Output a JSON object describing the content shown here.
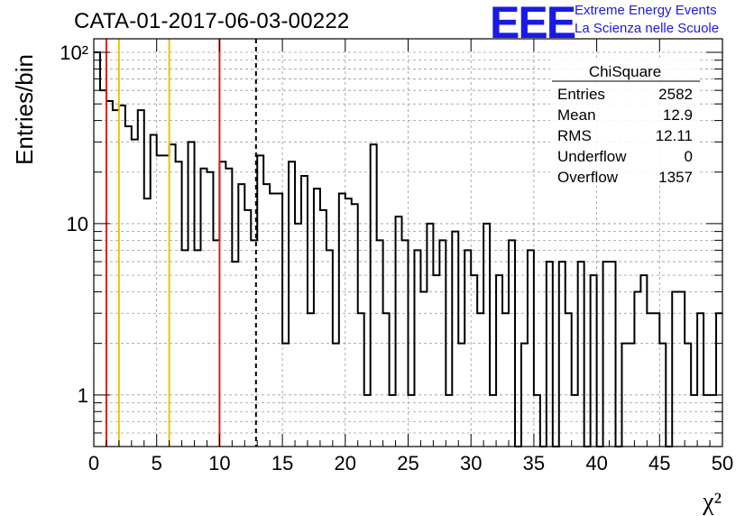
{
  "header": {
    "title": "CATA-01-2017-06-03-00222"
  },
  "logo": {
    "mark": "EEE",
    "line1": "Extreme Energy Events",
    "line2": "La Scienza nelle Scuole",
    "color": "#1a1ae6"
  },
  "stats": {
    "title": "ChiSquare",
    "rows": [
      {
        "label": "Entries",
        "value": "2582"
      },
      {
        "label": "Mean",
        "value": "12.9"
      },
      {
        "label": "RMS",
        "value": "12.11"
      },
      {
        "label": "Underflow",
        "value": "0"
      },
      {
        "label": "Overflow",
        "value": "1357"
      }
    ]
  },
  "chart_data": {
    "type": "histogram",
    "title": "",
    "xlabel": "χ²",
    "ylabel": "Entries/bin",
    "xlim": [
      0,
      50
    ],
    "ylim": [
      0.5,
      120
    ],
    "yscale": "log",
    "grid": true,
    "bin_width": 0.5,
    "x_ticks": [
      0,
      5,
      10,
      15,
      20,
      25,
      30,
      35,
      40,
      45,
      50
    ],
    "y_tick_labels": [
      "1",
      "10",
      "10²"
    ],
    "counts": [
      100,
      60,
      52,
      46,
      49,
      37,
      31,
      46,
      14,
      33,
      25,
      25,
      29,
      23,
      7,
      30,
      7,
      21,
      20,
      8,
      23,
      21,
      6,
      17,
      12,
      8,
      25,
      17,
      15,
      15,
      2,
      23,
      10,
      19,
      3,
      16,
      12,
      7,
      2,
      15,
      14,
      13,
      3,
      1,
      29,
      8,
      3,
      1,
      11,
      8,
      1,
      7,
      4,
      10,
      5,
      8,
      1,
      9,
      2,
      7,
      5,
      3,
      10,
      1,
      5,
      3,
      8,
      0,
      2,
      7,
      1,
      0,
      6,
      0,
      6,
      3,
      1,
      6,
      0,
      5,
      0,
      6,
      6,
      0,
      2,
      2,
      4,
      5,
      3,
      3,
      2,
      0,
      4,
      4,
      2,
      1,
      3,
      1,
      1,
      3
    ],
    "vlines": [
      {
        "x": 1,
        "color": "#e0201a",
        "style": "solid"
      },
      {
        "x": 2,
        "color": "#f2c200",
        "style": "solid"
      },
      {
        "x": 6,
        "color": "#f2c200",
        "style": "solid"
      },
      {
        "x": 10,
        "color": "#e0201a",
        "style": "solid"
      },
      {
        "x": 12.9,
        "color": "#000000",
        "style": "dashed"
      }
    ]
  }
}
